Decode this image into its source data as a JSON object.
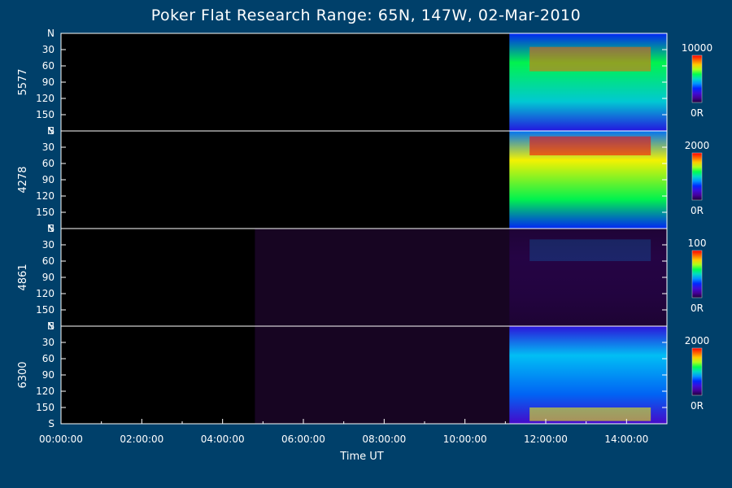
{
  "chart_data": {
    "type": "heatmap",
    "title": "Poker Flat Research Range: 65N, 147W, 02-Mar-2010",
    "xlabel": "Time UT",
    "x_ticks": [
      "00:00:00",
      "02:00:00",
      "04:00:00",
      "06:00:00",
      "08:00:00",
      "10:00:00",
      "12:00:00",
      "14:00:00"
    ],
    "xlim_hours": [
      0,
      15
    ],
    "y_ticks": [
      "N",
      "30",
      "60",
      "90",
      "120",
      "150",
      "S"
    ],
    "ylim": [
      0,
      180
    ],
    "colormap": "rainbow",
    "panels": [
      {
        "ylabel": "5577",
        "colorbar_max": "10000",
        "colorbar_min": "0R",
        "data_start_hour": 11.1,
        "peak_rows": [
          25,
          70
        ],
        "level": 0.6
      },
      {
        "ylabel": "4278",
        "colorbar_max": "2000",
        "colorbar_min": "0R",
        "data_start_hour": 11.1,
        "peak_rows": [
          10,
          45
        ],
        "level": 0.75
      },
      {
        "ylabel": "4861",
        "colorbar_max": "100",
        "colorbar_min": "0R",
        "data_start_hour": 4.8,
        "peak_rows": [
          20,
          60
        ],
        "level": 0.12
      },
      {
        "ylabel": "6300",
        "colorbar_max": "2000",
        "colorbar_min": "0R",
        "data_start_hour": 4.8,
        "peak_rows": [
          150,
          175
        ],
        "level": 0.45
      }
    ]
  }
}
